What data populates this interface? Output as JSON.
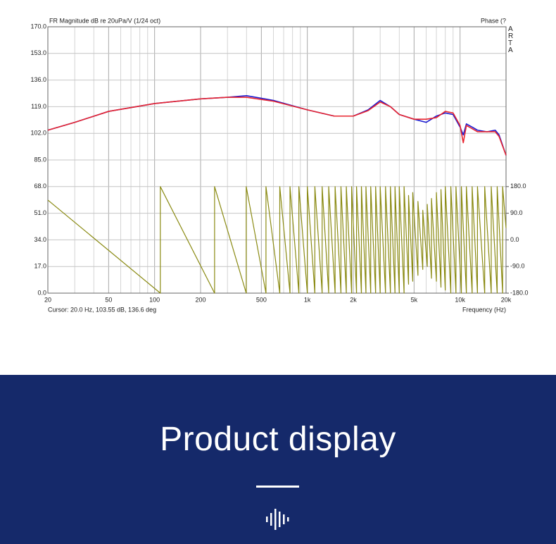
{
  "chart_data": {
    "type": "line",
    "title": "FR Magnitude dB re 20uPa/V (1/24 oct)",
    "y2_label": "Phase (?",
    "watermark": "ARTA",
    "cursor_readout": "Cursor: 20.0 Hz, 103.55 dB, 136.6 deg",
    "xlabel": "Frequency (Hz)",
    "xscale": "log",
    "grid": true,
    "xlim": [
      20,
      20000
    ],
    "xticks": [
      20,
      50,
      100,
      200,
      500,
      {
        "value": 1000,
        "label": "1k"
      },
      {
        "value": 2000,
        "label": "2k"
      },
      {
        "value": 5000,
        "label": "5k"
      },
      {
        "value": 10000,
        "label": "10k"
      },
      {
        "value": 20000,
        "label": "20k"
      }
    ],
    "xminorticks": [
      30,
      40,
      60,
      70,
      80,
      90,
      300,
      400,
      600,
      700,
      800,
      900,
      3000,
      4000,
      6000,
      7000,
      8000,
      9000
    ],
    "ylim": [
      0,
      170
    ],
    "yticks": [
      {
        "value": 0,
        "label": "0.0"
      },
      {
        "value": 17,
        "label": "17.0"
      },
      {
        "value": 34,
        "label": "34.0"
      },
      {
        "value": 51,
        "label": "51.0"
      },
      {
        "value": 68,
        "label": "68.0"
      },
      {
        "value": 85,
        "label": "85.0"
      },
      {
        "value": 102,
        "label": "102.0"
      },
      {
        "value": 119,
        "label": "119.0"
      },
      {
        "value": 136,
        "label": "136.0"
      },
      {
        "value": 153,
        "label": "153.0"
      },
      {
        "value": 170,
        "label": "170.0"
      }
    ],
    "y2lim": [
      -180,
      180
    ],
    "y2ticks": [
      {
        "value": -180,
        "label": "-180.0"
      },
      {
        "value": -90,
        "label": "-90.0"
      },
      {
        "value": 0,
        "label": "0.0"
      },
      {
        "value": 90,
        "label": "90.0"
      },
      {
        "value": 180,
        "label": "180.0"
      }
    ],
    "x": [
      20,
      30,
      50,
      100,
      200,
      300,
      400,
      600,
      1000,
      1500,
      2000,
      2500,
      3000,
      3500,
      4000,
      5000,
      6000,
      7000,
      8000,
      9000,
      10000,
      10500,
      11000,
      12000,
      13000,
      15000,
      17000,
      18000,
      20000
    ],
    "series": [
      {
        "color": "#1b1bd0",
        "values": [
          104,
          109,
          116,
          121,
          124,
          125,
          126,
          123,
          117,
          113,
          113,
          117,
          123,
          119,
          114,
          111,
          109,
          113,
          115,
          114,
          106,
          101,
          108,
          106,
          104,
          103,
          104,
          101,
          88
        ]
      },
      {
        "color": "#e8242e",
        "values": [
          104,
          109,
          116,
          121,
          124,
          125,
          125,
          122.5,
          117,
          113,
          113,
          116.5,
          122,
          119,
          114,
          111,
          111,
          112,
          116,
          115,
          107,
          96,
          107,
          105,
          103,
          103,
          103,
          100,
          88
        ]
      },
      {
        "color": "#8a8a12",
        "axis": "y2",
        "x": [
          20,
          109,
          109,
          247,
          247,
          398,
          398,
          536,
          536,
          660,
          660,
          770,
          770,
          880,
          880,
          1000,
          1000,
          1120,
          1120,
          1250,
          1250,
          1380,
          1380,
          1520,
          1520,
          1660,
          1660,
          1800,
          1800,
          1950,
          1950,
          2100,
          2100,
          2260,
          2260,
          2420,
          2420,
          2600,
          2600,
          2800,
          2800,
          3000,
          3000,
          3250,
          3250,
          3500,
          3500,
          3750,
          3750,
          4000,
          4000,
          4300,
          4300,
          4600,
          4600,
          4900,
          4900,
          5300,
          5300,
          5700,
          5700,
          6100,
          6100,
          6500,
          6500,
          7000,
          7000,
          7500,
          7500,
          8000,
          8000,
          8700,
          8700,
          9400,
          9400,
          10200,
          10200,
          11000,
          11000,
          12000,
          12000,
          13000,
          13000,
          14500,
          14500,
          16000,
          16000,
          17500,
          17500,
          19000,
          19000,
          20000
        ],
        "values": [
          134.5,
          -180,
          180,
          -180,
          180,
          -180,
          180,
          -180,
          180,
          -180,
          180,
          -180,
          180,
          -180,
          180,
          -180,
          180,
          -180,
          180,
          -180,
          180,
          -180,
          180,
          -180,
          180,
          -180,
          180,
          -180,
          180,
          -180,
          180,
          -180,
          180,
          -180,
          180,
          -180,
          180,
          -180,
          180,
          -180,
          180,
          -180,
          180,
          -180,
          180,
          -180,
          180,
          -180,
          180,
          -180,
          180,
          -180,
          180,
          -150,
          150,
          -140,
          160,
          -120,
          130,
          -100,
          100,
          -90,
          120,
          -130,
          140,
          -140,
          160,
          -160,
          170,
          -170,
          180,
          -180,
          180,
          -180,
          180,
          -180,
          180,
          -180,
          180,
          -180,
          180,
          -180,
          180,
          -180,
          180,
          -180,
          180,
          -180,
          180,
          -180,
          180,
          40
        ]
      }
    ]
  },
  "banner": {
    "title": "Product display"
  }
}
